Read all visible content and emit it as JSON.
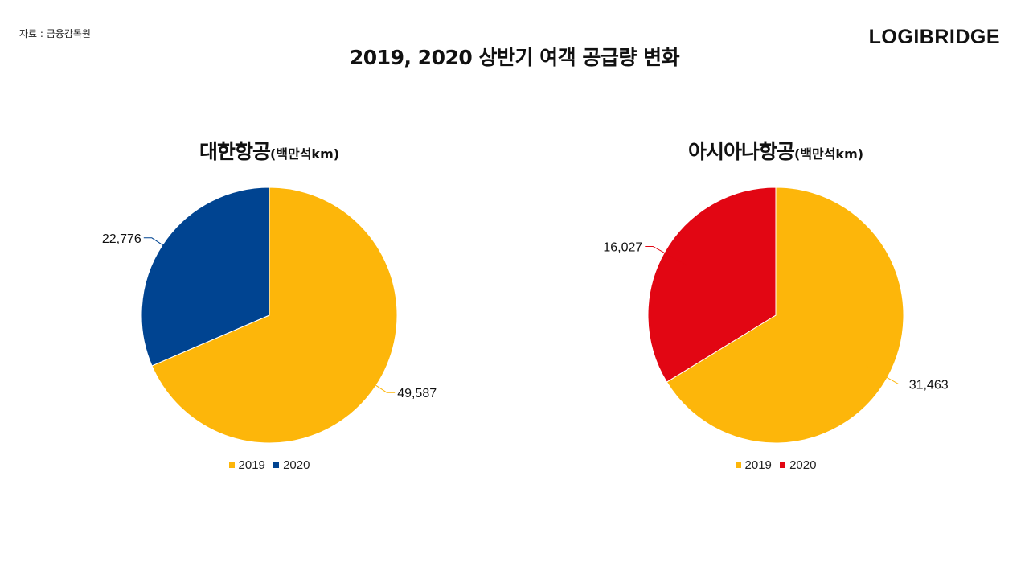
{
  "source": "자료 : 금융감독원",
  "brand": "LOGIBRIDGE",
  "title": "2019, 2020 상반기 여객 공급량 변화",
  "chart_data": [
    {
      "type": "pie",
      "title": "대한항공",
      "unit": "(백만석km)",
      "slices": [
        {
          "label": "2019",
          "value": 49587,
          "color": "#FDB60A"
        },
        {
          "label": "2020",
          "value": 22776,
          "color": "#004491"
        }
      ],
      "legend": [
        "2019",
        "2020"
      ],
      "legend_position": "bottom"
    },
    {
      "type": "pie",
      "title": "아시아나항공",
      "unit": "(백만석km)",
      "slices": [
        {
          "label": "2019",
          "value": 31463,
          "color": "#FDB60A"
        },
        {
          "label": "2020",
          "value": 16027,
          "color": "#E20613"
        }
      ],
      "legend": [
        "2019",
        "2020"
      ],
      "legend_position": "bottom"
    }
  ]
}
